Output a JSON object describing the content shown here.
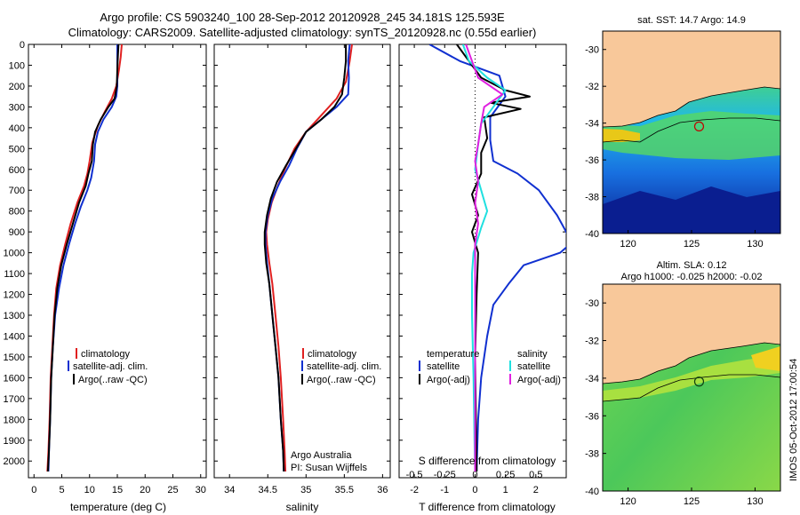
{
  "header": {
    "line1": "Argo profile: CS 5903240_100 28-Sep-2012 20120928_245 34.181S 125.593E",
    "line2": "Climatology: CARS2009. Satellite-adjusted climatology: synTS_20120928.nc (0.55d earlier)"
  },
  "footer": {
    "stamp": "IMOS 05-Oct-2012 17:00:54"
  },
  "colors": {
    "red": "#e02020",
    "blue": "#1030d0",
    "black": "#000000",
    "cyan": "#20e0e0",
    "magenta": "#e020e0",
    "land": "#f8c89a"
  },
  "chart_data": [
    {
      "type": "line",
      "id": "temperature",
      "xlabel": "temperature (deg C)",
      "ylabel": "",
      "xlim": [
        -1,
        31
      ],
      "ylim": [
        2080,
        0
      ],
      "xticks": [
        0,
        5,
        10,
        15,
        20,
        25,
        30
      ],
      "yticks": [
        0,
        100,
        200,
        300,
        400,
        500,
        600,
        700,
        800,
        900,
        1000,
        1100,
        1200,
        1300,
        1400,
        1500,
        1600,
        1700,
        1800,
        1900,
        2000
      ],
      "legend": [
        "climatology",
        "satellite-adj. clim.",
        "Argo(..raw -QC)"
      ],
      "legend_position": "center",
      "series": [
        {
          "name": "climatology",
          "color": "red",
          "points": [
            [
              15.8,
              0
            ],
            [
              15.6,
              60
            ],
            [
              15.3,
              120
            ],
            [
              14.8,
              200
            ],
            [
              14,
              260
            ],
            [
              12.8,
              320
            ],
            [
              11.5,
              390
            ],
            [
              10.5,
              470
            ],
            [
              10,
              560
            ],
            [
              9.6,
              620
            ],
            [
              9,
              680
            ],
            [
              7.8,
              760
            ],
            [
              6.6,
              860
            ],
            [
              5.6,
              960
            ],
            [
              4.7,
              1060
            ],
            [
              4,
              1170
            ],
            [
              3.6,
              1300
            ],
            [
              3.3,
              1450
            ],
            [
              3,
              1600
            ],
            [
              2.8,
              1800
            ],
            [
              2.6,
              1950
            ],
            [
              2.4,
              2050
            ]
          ]
        },
        {
          "name": "satellite-adj. clim.",
          "color": "blue",
          "points": [
            [
              15,
              0
            ],
            [
              15,
              60
            ],
            [
              15,
              120
            ],
            [
              15,
              200
            ],
            [
              14.8,
              250
            ],
            [
              14,
              300
            ],
            [
              12.5,
              360
            ],
            [
              11.5,
              420
            ],
            [
              11,
              480
            ],
            [
              10.8,
              560
            ],
            [
              10.3,
              640
            ],
            [
              9.6,
              700
            ],
            [
              8.4,
              780
            ],
            [
              7.4,
              860
            ],
            [
              6.3,
              960
            ],
            [
              5.3,
              1060
            ],
            [
              4.5,
              1170
            ],
            [
              3.8,
              1300
            ],
            [
              3.4,
              1450
            ],
            [
              3.1,
              1600
            ],
            [
              2.9,
              1800
            ],
            [
              2.7,
              1950
            ],
            [
              2.6,
              2050
            ]
          ]
        },
        {
          "name": "Argo(..raw -QC)",
          "color": "black",
          "points": [
            [
              15.2,
              0
            ],
            [
              15.1,
              60
            ],
            [
              15,
              120
            ],
            [
              14.9,
              200
            ],
            [
              14.5,
              260
            ],
            [
              13.4,
              300
            ],
            [
              12,
              360
            ],
            [
              11,
              420
            ],
            [
              10.6,
              480
            ],
            [
              10.4,
              560
            ],
            [
              9.8,
              620
            ],
            [
              9.3,
              680
            ],
            [
              8.1,
              760
            ],
            [
              7,
              860
            ],
            [
              5.9,
              960
            ],
            [
              4.9,
              1060
            ],
            [
              4.2,
              1170
            ],
            [
              3.7,
              1300
            ],
            [
              3.4,
              1450
            ],
            [
              3.1,
              1600
            ],
            [
              2.9,
              1800
            ],
            [
              2.7,
              1950
            ],
            [
              2.5,
              2050
            ]
          ]
        }
      ]
    },
    {
      "type": "line",
      "id": "salinity",
      "xlabel": "salinity",
      "ylabel": "",
      "xlim": [
        33.8,
        36.1
      ],
      "ylim": [
        2080,
        0
      ],
      "xticks": [
        34,
        34.5,
        35,
        35.5,
        36
      ],
      "legend": [
        "climatology",
        "satellite-adj. clim.",
        "Argo(..raw -QC)"
      ],
      "legend_position": "center",
      "annotations": [
        "Argo Australia",
        "PI: Susan Wijffels"
      ],
      "series": [
        {
          "name": "climatology",
          "color": "red",
          "points": [
            [
              35.6,
              0
            ],
            [
              35.57,
              80
            ],
            [
              35.52,
              180
            ],
            [
              35.4,
              260
            ],
            [
              35.2,
              340
            ],
            [
              35.0,
              420
            ],
            [
              34.85,
              500
            ],
            [
              34.72,
              600
            ],
            [
              34.63,
              680
            ],
            [
              34.55,
              760
            ],
            [
              34.5,
              840
            ],
            [
              34.48,
              900
            ],
            [
              34.49,
              960
            ],
            [
              34.52,
              1050
            ],
            [
              34.56,
              1150
            ],
            [
              34.6,
              1300
            ],
            [
              34.64,
              1450
            ],
            [
              34.67,
              1600
            ],
            [
              34.7,
              1800
            ],
            [
              34.72,
              1950
            ],
            [
              34.73,
              2050
            ]
          ]
        },
        {
          "name": "satellite-adj. clim.",
          "color": "blue",
          "points": [
            [
              35.57,
              0
            ],
            [
              35.55,
              80
            ],
            [
              35.56,
              160
            ],
            [
              35.55,
              240
            ],
            [
              35.4,
              300
            ],
            [
              35.2,
              360
            ],
            [
              35.0,
              420
            ],
            [
              34.88,
              500
            ],
            [
              34.78,
              580
            ],
            [
              34.66,
              660
            ],
            [
              34.56,
              740
            ],
            [
              34.5,
              820
            ],
            [
              34.47,
              900
            ],
            [
              34.47,
              960
            ],
            [
              34.49,
              1050
            ],
            [
              34.52,
              1150
            ],
            [
              34.56,
              1300
            ],
            [
              34.6,
              1450
            ],
            [
              34.64,
              1600
            ],
            [
              34.67,
              1800
            ],
            [
              34.7,
              1950
            ],
            [
              34.71,
              2050
            ]
          ]
        },
        {
          "name": "Argo(..raw -QC)",
          "color": "black",
          "points": [
            [
              35.52,
              0
            ],
            [
              35.52,
              80
            ],
            [
              35.5,
              160
            ],
            [
              35.47,
              240
            ],
            [
              35.37,
              300
            ],
            [
              35.2,
              360
            ],
            [
              35.0,
              420
            ],
            [
              34.87,
              500
            ],
            [
              34.74,
              580
            ],
            [
              34.62,
              660
            ],
            [
              34.54,
              740
            ],
            [
              34.49,
              820
            ],
            [
              34.46,
              900
            ],
            [
              34.46,
              960
            ],
            [
              34.48,
              1050
            ],
            [
              34.52,
              1150
            ],
            [
              34.56,
              1300
            ],
            [
              34.6,
              1450
            ],
            [
              34.64,
              1600
            ],
            [
              34.67,
              1800
            ],
            [
              34.7,
              1950
            ],
            [
              34.71,
              2050
            ]
          ]
        }
      ]
    },
    {
      "type": "line",
      "id": "difference",
      "xlabel": "T difference from climatology",
      "xlabel2": "S difference from climatology",
      "xlim": [
        -2.5,
        3
      ],
      "ylim": [
        2080,
        0
      ],
      "xticks": [
        -2,
        -1,
        0,
        1,
        2
      ],
      "xticks_top_labels": [
        "-0.5",
        "-0.25",
        "0",
        "0.25",
        "0.5"
      ],
      "legend_titles": [
        "temperature",
        "salinity"
      ],
      "legend": [
        "satellite",
        "Argo(-adj)",
        "satellite",
        "Argo(-adj)"
      ],
      "legend_position": "center",
      "series": [
        {
          "name": "satellite",
          "color": "blue",
          "quantity": "temperature",
          "points": [
            [
              -1.5,
              0
            ],
            [
              -0.5,
              80
            ],
            [
              0.8,
              150
            ],
            [
              1,
              250
            ],
            [
              0.5,
              350
            ],
            [
              0.5,
              460
            ],
            [
              0.6,
              560
            ],
            [
              1.4,
              620
            ],
            [
              2.1,
              700
            ],
            [
              2.7,
              820
            ],
            [
              3.0,
              900
            ],
            [
              3.2,
              950
            ],
            [
              2.8,
              1000
            ],
            [
              1.6,
              1060
            ],
            [
              1.1,
              1150
            ],
            [
              0.6,
              1250
            ],
            [
              0.4,
              1400
            ],
            [
              0.2,
              1600
            ],
            [
              0.1,
              1800
            ],
            [
              0.05,
              2050
            ]
          ]
        },
        {
          "name": "Argo(-adj)",
          "color": "black",
          "quantity": "temperature",
          "points": [
            [
              -0.6,
              0
            ],
            [
              -0.2,
              80
            ],
            [
              0.2,
              160
            ],
            [
              1.0,
              220
            ],
            [
              1.8,
              250
            ],
            [
              0.5,
              280
            ],
            [
              1.5,
              310
            ],
            [
              0.3,
              350
            ],
            [
              0.4,
              450
            ],
            [
              0.2,
              520
            ],
            [
              0.2,
              620
            ],
            [
              -0.1,
              720
            ],
            [
              0.1,
              820
            ],
            [
              -0.1,
              900
            ],
            [
              0.1,
              1000
            ],
            [
              0.05,
              1200
            ],
            [
              0.0,
              1500
            ],
            [
              0.05,
              2050
            ]
          ]
        },
        {
          "name": "satellite",
          "color": "cyan",
          "quantity": "salinity",
          "points": [
            [
              -0.4,
              0
            ],
            [
              -0.2,
              80
            ],
            [
              0.4,
              160
            ],
            [
              1.0,
              220
            ],
            [
              0.6,
              300
            ],
            [
              0.2,
              380
            ],
            [
              0.1,
              480
            ],
            [
              0.0,
              600
            ],
            [
              0.2,
              700
            ],
            [
              0.4,
              800
            ],
            [
              0.2,
              880
            ],
            [
              -0.05,
              1000
            ],
            [
              -0.1,
              1100
            ],
            [
              -0.1,
              1300
            ],
            [
              -0.05,
              1600
            ],
            [
              -0.02,
              1900
            ],
            [
              0.0,
              2050
            ]
          ]
        },
        {
          "name": "Argo(-adj)",
          "color": "magenta",
          "quantity": "salinity",
          "points": [
            [
              -0.3,
              0
            ],
            [
              -0.1,
              80
            ],
            [
              0.1,
              160
            ],
            [
              0.9,
              240
            ],
            [
              0.3,
              300
            ],
            [
              0.2,
              380
            ],
            [
              0.1,
              480
            ],
            [
              0.0,
              560
            ],
            [
              0.1,
              660
            ],
            [
              0.0,
              760
            ],
            [
              0.1,
              860
            ],
            [
              0.0,
              960
            ],
            [
              0.0,
              1100
            ],
            [
              0.0,
              1400
            ],
            [
              0.0,
              1700
            ],
            [
              0.0,
              2050
            ]
          ]
        }
      ]
    },
    {
      "type": "heatmap",
      "id": "sst_map",
      "title": "sat. SST: 14.7  Argo: 14.9",
      "xlim": [
        118,
        132
      ],
      "ylim": [
        -40,
        -29
      ],
      "xticks": [
        120,
        125,
        130
      ],
      "yticks": [
        -30,
        -32,
        -34,
        -36,
        -38,
        -40
      ],
      "marker": {
        "lon": 125.593,
        "lat": -34.181
      }
    },
    {
      "type": "heatmap",
      "id": "sla_map",
      "title": "Altim. SLA: 0.12",
      "subtitle": "Argo h1000: -0.025  h2000: -0.02",
      "xlim": [
        118,
        132
      ],
      "ylim": [
        -40,
        -29
      ],
      "xticks": [
        120,
        125,
        130
      ],
      "yticks": [
        -30,
        -32,
        -34,
        -36,
        -38,
        -40
      ],
      "marker": {
        "lon": 125.593,
        "lat": -34.181
      }
    }
  ]
}
